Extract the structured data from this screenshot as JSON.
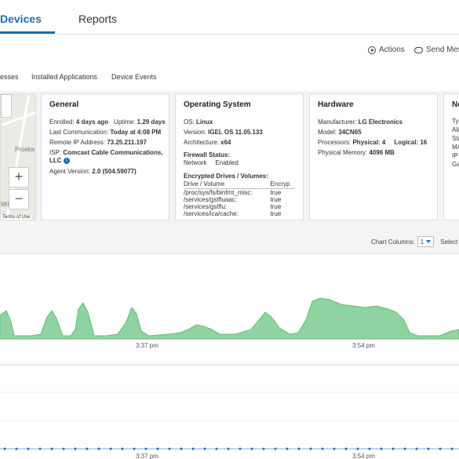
{
  "nav": {
    "tabs": [
      {
        "label": "Devices",
        "active": true
      },
      {
        "label": "Reports",
        "active": false
      }
    ]
  },
  "toolbar": {
    "actions_label": "Actions",
    "send_message_label": "Send Mess",
    "actions_icon": "play-circle-icon",
    "send_icon": "message-bubble-icon"
  },
  "subtabs": [
    "esses",
    "Installed Applications",
    "Device Events"
  ],
  "map": {
    "labels": [
      "Proebs",
      "Mill"
    ],
    "zoom_in": "+",
    "zoom_out": "−",
    "terms": "Terms of Use"
  },
  "general": {
    "title": "General",
    "enrolled_label": "Enrolled:",
    "enrolled_value": "4 days ago",
    "uptime_label": "Uptime:",
    "uptime_value": "1.29 days",
    "last_comm_label": "Last Communication:",
    "last_comm_value": "Today at 4:08 PM",
    "remote_ip_label": "Remote IP Address:",
    "remote_ip_value": "73.25.211.197",
    "isp_label": "ISP:",
    "isp_value_1": "Comcast Cable Communications,",
    "isp_value_2": "LLC",
    "agent_label": "Agent Version:",
    "agent_value": "2.0 (504.59077)"
  },
  "os": {
    "title": "Operating System",
    "os_label": "OS:",
    "os_value": "Linux",
    "version_label": "Version:",
    "version_value": "IGEL OS 11.05.133",
    "arch_label": "Architecture:",
    "arch_value": "x64",
    "firewall_label": "Firewall Status:",
    "firewall_rows": [
      {
        "name": "Network",
        "status": "Enabled"
      }
    ],
    "encrypted_label": "Encrypted Drives / Volumes:",
    "drive_headers": [
      "Drive / Volume",
      "Encryp"
    ],
    "drives": [
      {
        "path": "/proc/sys/fs/binfmt_misc:",
        "enc": "true"
      },
      {
        "path": "/services/gstfluaac:",
        "enc": "true"
      },
      {
        "path": "/services/gstflu:",
        "enc": "true"
      },
      {
        "path": "/services/ica/cache:",
        "enc": "true"
      }
    ]
  },
  "hardware": {
    "title": "Hardware",
    "manufacturer_label": "Manufacturer:",
    "manufacturer_value": "LG Electronics",
    "model_label": "Model:",
    "model_value": "34CN65",
    "processors_label": "Processors:",
    "physical_label": "Physical:",
    "physical_value": "4",
    "logical_label": "Logical:",
    "logical_value": "16",
    "memory_label": "Physical Memory:",
    "memory_value": "4096 MB"
  },
  "network": {
    "title": "Ne",
    "labels": [
      "Ty",
      "Ali",
      "Sta",
      "MA",
      "IP",
      "Ga"
    ]
  },
  "chart_controls": {
    "columns_label": "Chart Columns:",
    "columns_value": "1",
    "select_label": "Select"
  },
  "charts": [
    {
      "tick_labels": [
        "3:37 pm",
        "3:54 pm"
      ]
    },
    {
      "tick_labels": [
        "3:37 pm",
        "3:54 pm"
      ]
    }
  ],
  "colors": {
    "accent": "#1b6fb0",
    "area_fill": "#8fd4a0",
    "area_stroke": "#5dbb75",
    "dots": "#1b6fb0"
  }
}
